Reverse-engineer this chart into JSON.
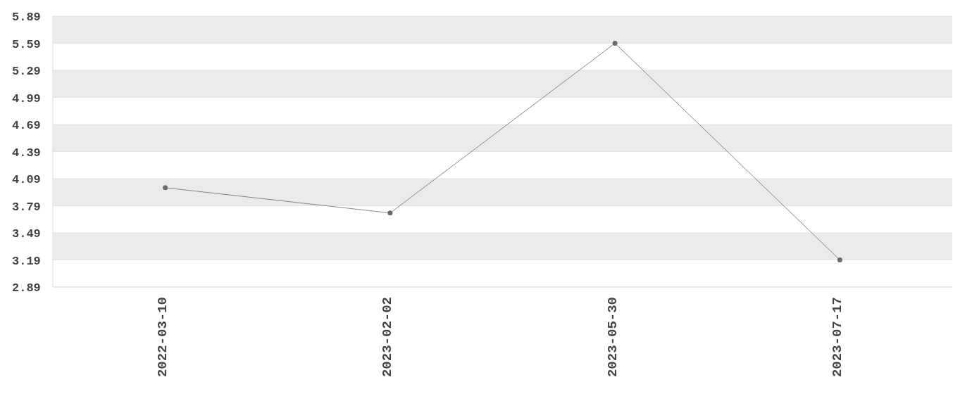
{
  "chart_data": {
    "type": "line",
    "categories": [
      "2022-03-10",
      "2023-02-02",
      "2023-05-30",
      "2023-07-17"
    ],
    "series": [
      {
        "color": "#6b6b6b",
        "values": [
          3.99,
          3.71,
          5.59,
          3.19
        ]
      }
    ],
    "ylim": [
      2.89,
      5.89
    ],
    "yticks": [
      2.89,
      3.19,
      3.49,
      3.79,
      4.09,
      4.39,
      4.69,
      4.99,
      5.29,
      5.59,
      5.89
    ],
    "grid": "y",
    "marker": "circle",
    "line_style": "solid"
  }
}
